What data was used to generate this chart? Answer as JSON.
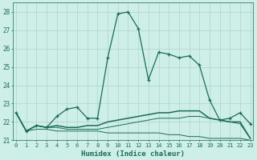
{
  "xlabel": "Humidex (Indice chaleur)",
  "x": [
    0,
    1,
    2,
    3,
    4,
    5,
    6,
    7,
    8,
    9,
    10,
    11,
    12,
    13,
    14,
    15,
    16,
    17,
    18,
    19,
    20,
    21,
    22,
    23
  ],
  "line1": [
    22.5,
    21.5,
    21.8,
    21.7,
    22.3,
    22.7,
    22.8,
    22.2,
    22.2,
    25.5,
    27.9,
    28.0,
    27.1,
    24.3,
    25.8,
    25.7,
    25.5,
    25.6,
    25.1,
    23.2,
    22.1,
    22.2,
    22.5,
    21.9
  ],
  "line2": [
    22.5,
    21.5,
    21.8,
    21.7,
    21.8,
    21.7,
    21.7,
    21.8,
    21.8,
    22.0,
    22.1,
    22.2,
    22.3,
    22.4,
    22.5,
    22.5,
    22.6,
    22.6,
    22.6,
    22.2,
    22.1,
    22.0,
    22.0,
    21.1
  ],
  "line3": [
    22.5,
    21.5,
    21.6,
    21.6,
    21.5,
    21.5,
    21.5,
    21.5,
    21.5,
    21.4,
    21.4,
    21.4,
    21.4,
    21.4,
    21.4,
    21.3,
    21.3,
    21.2,
    21.2,
    21.1,
    21.1,
    21.1,
    21.1,
    21.0
  ],
  "line4": [
    22.5,
    21.5,
    21.8,
    21.7,
    21.7,
    21.6,
    21.6,
    21.6,
    21.6,
    21.7,
    21.8,
    21.9,
    22.0,
    22.1,
    22.2,
    22.2,
    22.2,
    22.3,
    22.3,
    22.2,
    22.1,
    22.0,
    21.9,
    21.1
  ],
  "line_color": "#1a6b5a",
  "bg_color": "#ceeee8",
  "grid_color": "#aed4cc",
  "ylim": [
    21.0,
    28.5
  ],
  "yticks": [
    21,
    22,
    23,
    24,
    25,
    26,
    27,
    28
  ],
  "xticks": [
    0,
    1,
    2,
    3,
    4,
    5,
    6,
    7,
    8,
    9,
    10,
    11,
    12,
    13,
    14,
    15,
    16,
    17,
    18,
    19,
    20,
    21,
    22,
    23
  ]
}
